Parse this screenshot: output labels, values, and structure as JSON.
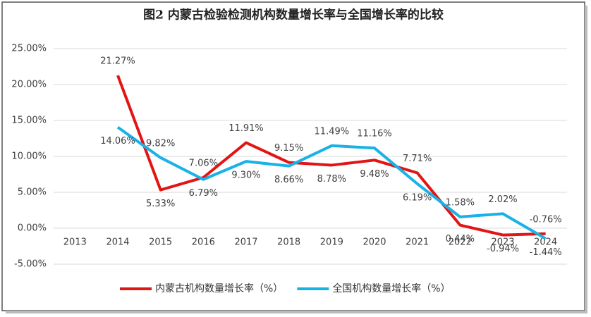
{
  "chart_data": {
    "type": "line",
    "title": "图2 内蒙古检验检测机构数量增长率与全国增长率的比较",
    "categories": [
      "2013",
      "2014",
      "2015",
      "2016",
      "2017",
      "2018",
      "2019",
      "2020",
      "2021",
      "2022",
      "2023",
      "2024"
    ],
    "series": [
      {
        "name": "内蒙古机构数量增长率（%）",
        "color": "#e31414",
        "values": [
          null,
          21.27,
          5.33,
          7.06,
          11.91,
          9.15,
          8.78,
          9.48,
          7.71,
          0.44,
          -0.94,
          -0.76
        ],
        "value_labels": [
          null,
          "21.27%",
          "5.33%",
          "7.06%",
          "11.91%",
          "9.15%",
          "8.78%",
          "9.48%",
          "7.71%",
          "0.44%",
          "-0.94%",
          "-0.76%"
        ]
      },
      {
        "name": "全国机构数量增长率（%）",
        "color": "#19b2e6",
        "values": [
          null,
          14.06,
          9.82,
          6.79,
          9.3,
          8.66,
          11.49,
          11.16,
          6.19,
          1.58,
          2.02,
          -1.44
        ],
        "value_labels": [
          null,
          "14.06%",
          "9.82%",
          "6.79%",
          "9.30%",
          "8.66%",
          "11.49%",
          "11.16%",
          "6.19%",
          "1.58%",
          "2.02%",
          "-1.44%"
        ]
      }
    ],
    "ylim": [
      -5,
      25
    ],
    "yticks": [
      {
        "value": -5,
        "label": "-5.00%"
      },
      {
        "value": 0,
        "label": "0.00%"
      },
      {
        "value": 5,
        "label": "5.00%"
      },
      {
        "value": 10,
        "label": "10.00%"
      },
      {
        "value": 15,
        "label": "15.00%"
      },
      {
        "value": 20,
        "label": "20.00%"
      },
      {
        "value": 25,
        "label": "25.00%"
      }
    ],
    "grid": true
  }
}
